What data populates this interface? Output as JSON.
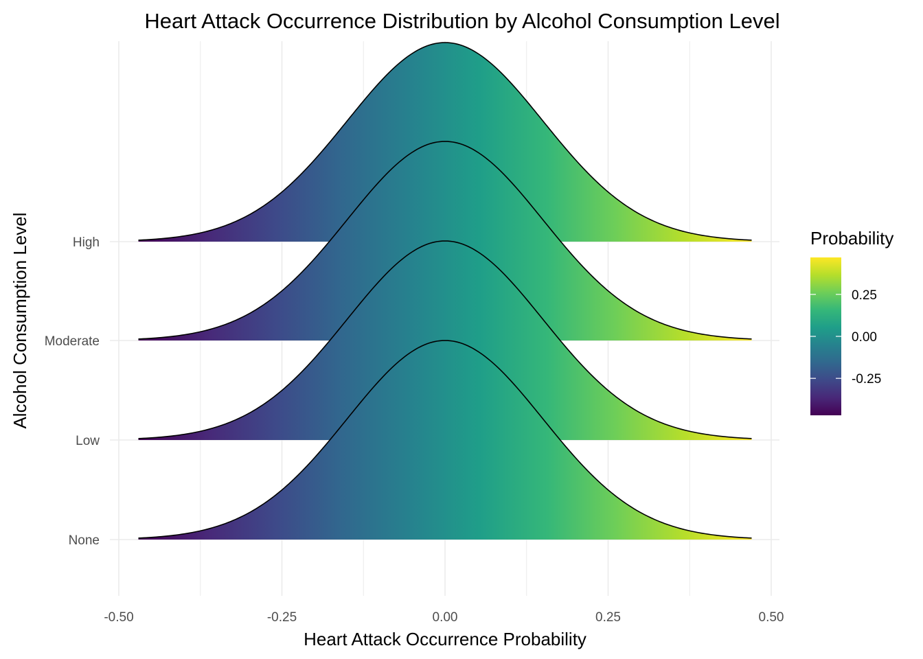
{
  "chart_data": {
    "type": "ridgeline",
    "title": "Heart Attack Occurrence Distribution by Alcohol Consumption Level",
    "xlabel": "Heart Attack Occurrence Probability",
    "ylabel": "Alcohol Consumption Level",
    "xlim": [
      -0.5,
      0.5
    ],
    "x_ticks": [
      "-0.50",
      "-0.25",
      "0.00",
      "0.25",
      "0.50"
    ],
    "x_tick_values": [
      -0.5,
      -0.25,
      0.0,
      0.25,
      0.5
    ],
    "categories": [
      "None",
      "Low",
      "Moderate",
      "High"
    ],
    "series": [
      {
        "category": "None",
        "mean": 0.0,
        "sd": 0.15,
        "x_range": [
          -0.47,
          0.47
        ]
      },
      {
        "category": "Low",
        "mean": 0.0,
        "sd": 0.15,
        "x_range": [
          -0.47,
          0.47
        ]
      },
      {
        "category": "Moderate",
        "mean": 0.0,
        "sd": 0.15,
        "x_range": [
          -0.47,
          0.47
        ]
      },
      {
        "category": "High",
        "mean": 0.0,
        "sd": 0.15,
        "x_range": [
          -0.47,
          0.47
        ]
      }
    ],
    "fill_by": "x",
    "grid": true,
    "legend": {
      "title": "Probability",
      "position": "right",
      "range": [
        -0.47,
        0.47
      ],
      "ticks": [
        "0.25",
        "0.00",
        "-0.25"
      ],
      "tick_values": [
        0.25,
        0.0,
        -0.25
      ],
      "palette": "viridis"
    }
  },
  "colors": {
    "viridis": [
      "#440154",
      "#482878",
      "#3e4989",
      "#31688e",
      "#26828e",
      "#1f9e89",
      "#35b779",
      "#6ece58",
      "#b5de2b",
      "#fde725"
    ],
    "grid": "#ebebeb",
    "outline": "#000000"
  }
}
